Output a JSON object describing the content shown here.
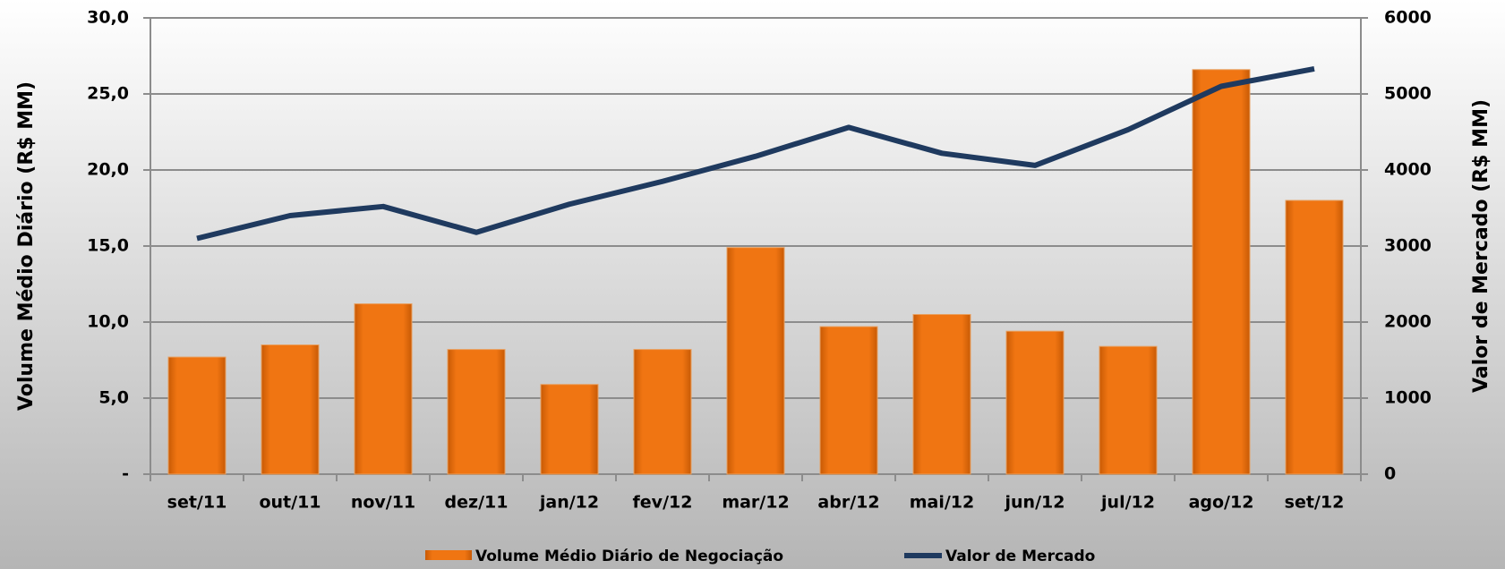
{
  "chart_data": {
    "type": "bar_line",
    "categories": [
      "set/11",
      "out/11",
      "nov/11",
      "dez/11",
      "jan/12",
      "fev/12",
      "mar/12",
      "abr/12",
      "mai/12",
      "jun/12",
      "jul/12",
      "ago/12",
      "set/12"
    ],
    "series": [
      {
        "name": "Volume Médio Diário de Negociação",
        "color": "#f07512",
        "type": "bar",
        "axis": "y",
        "values": [
          7.7,
          8.5,
          11.2,
          8.2,
          5.9,
          8.2,
          14.9,
          9.7,
          10.5,
          9.4,
          8.4,
          26.6,
          18.0
        ]
      },
      {
        "name": "Valor de Mercado",
        "color": "#1f3a5f",
        "type": "line",
        "axis": "y2",
        "values": [
          3100,
          3400,
          3520,
          3180,
          3550,
          3850,
          4180,
          4560,
          4220,
          4060,
          4530,
          5100,
          5330
        ]
      }
    ],
    "ylabel": "Volume Médio Diário (R$ MM)",
    "y2label": "Valor de Mercado (R$ MM)",
    "ylim": [
      0,
      30
    ],
    "yticks": [
      {
        "value": 0,
        "label": "-"
      },
      {
        "value": 5,
        "label": "5,0"
      },
      {
        "value": 10,
        "label": "10,0"
      },
      {
        "value": 15,
        "label": "15,0"
      },
      {
        "value": 20,
        "label": "20,0"
      },
      {
        "value": 25,
        "label": "25,0"
      },
      {
        "value": 30,
        "label": "30,0"
      }
    ],
    "y2lim": [
      0,
      6000
    ],
    "y2ticks": [
      0,
      1000,
      2000,
      3000,
      4000,
      5000,
      6000
    ],
    "grid": true,
    "legend": "bottom"
  }
}
